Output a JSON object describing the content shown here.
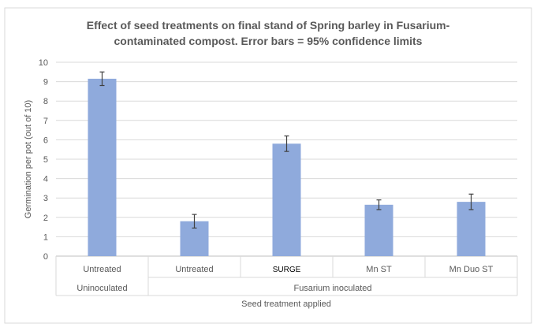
{
  "chart_data": {
    "type": "bar",
    "title": "Effect of seed treatments on final stand of Spring barley in Fusarium-contaminated compost.  Error bars = 95% confidence limits",
    "title_lines": [
      "Effect of seed treatments on final stand of Spring barley in Fusarium-",
      "contaminated compost.  Error bars = 95% confidence limits"
    ],
    "ylabel": "Germination per pot (out of 10)",
    "xlabel": "Seed treatment applied",
    "ylim": [
      0,
      10
    ],
    "yticks": [
      "0",
      "1",
      "2",
      "3",
      "4",
      "5",
      "6",
      "7",
      "8",
      "9",
      "10"
    ],
    "grid": true,
    "bar_color": "#8faadc",
    "error_color": "#404040",
    "categories": [
      "Untreated",
      "Untreated",
      "SURGE",
      "Mn ST",
      "Mn Duo ST"
    ],
    "groups": [
      {
        "label": "Uninoculated",
        "span": [
          0,
          0
        ]
      },
      {
        "label": "Fusarium inoculated",
        "span": [
          1,
          4
        ]
      }
    ],
    "values": [
      9.15,
      1.8,
      5.8,
      2.65,
      2.8
    ],
    "error": [
      0.35,
      0.35,
      0.4,
      0.25,
      0.4
    ]
  }
}
